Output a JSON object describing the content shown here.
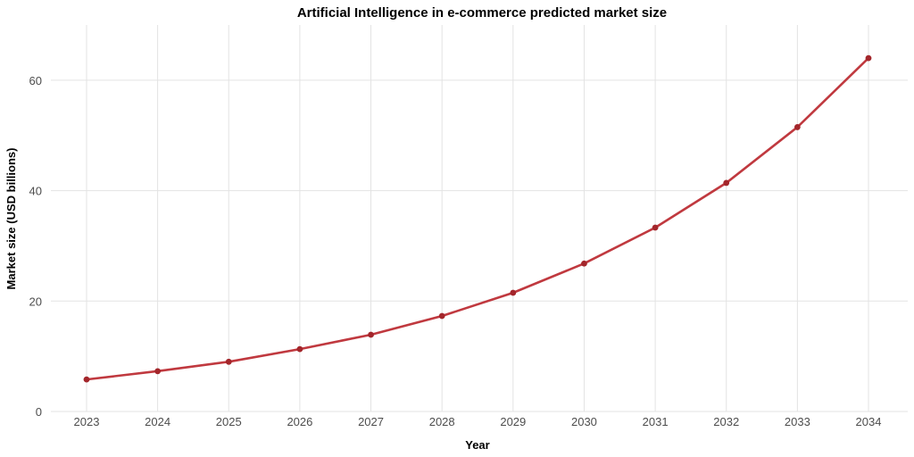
{
  "chart_data": {
    "type": "line",
    "title": "Artificial Intelligence in e-commerce predicted market size",
    "xlabel": "Year",
    "ylabel": "Market size (USD billions)",
    "x": [
      "2023",
      "2024",
      "2025",
      "2026",
      "2027",
      "2028",
      "2029",
      "2030",
      "2031",
      "2032",
      "2033",
      "2034"
    ],
    "values": [
      5.8,
      7.3,
      9.0,
      11.3,
      13.9,
      17.3,
      21.5,
      26.8,
      33.3,
      41.4,
      51.5,
      64.0
    ],
    "yticks": [
      0,
      20,
      40,
      60
    ],
    "ylim": [
      0,
      70
    ],
    "grid": true,
    "legend": "none",
    "colors": {
      "line": "#c0393f",
      "point": "#a3262b",
      "grid": "#e3e3e3"
    }
  }
}
